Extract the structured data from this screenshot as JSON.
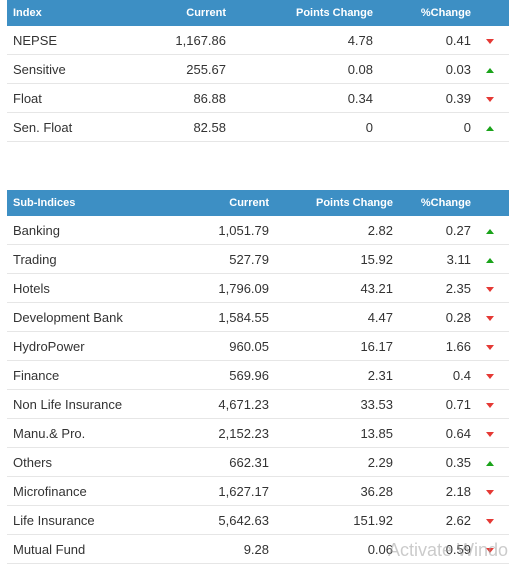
{
  "index_table": {
    "headers": [
      "Index",
      "Current",
      "Points Change",
      "%Change"
    ],
    "rows": [
      {
        "name": "NEPSE",
        "current": "1,167.86",
        "points": "4.78",
        "pct": "0.41",
        "dir": "down"
      },
      {
        "name": "Sensitive",
        "current": "255.67",
        "points": "0.08",
        "pct": "0.03",
        "dir": "up"
      },
      {
        "name": "Float",
        "current": "86.88",
        "points": "0.34",
        "pct": "0.39",
        "dir": "down"
      },
      {
        "name": "Sen. Float",
        "current": "82.58",
        "points": "0",
        "pct": "0",
        "dir": "up"
      }
    ]
  },
  "subindex_table": {
    "headers": [
      "Sub-Indices",
      "Current",
      "Points Change",
      "%Change"
    ],
    "rows": [
      {
        "name": "Banking",
        "current": "1,051.79",
        "points": "2.82",
        "pct": "0.27",
        "dir": "up"
      },
      {
        "name": "Trading",
        "current": "527.79",
        "points": "15.92",
        "pct": "3.11",
        "dir": "up"
      },
      {
        "name": "Hotels",
        "current": "1,796.09",
        "points": "43.21",
        "pct": "2.35",
        "dir": "down"
      },
      {
        "name": "Development Bank",
        "current": "1,584.55",
        "points": "4.47",
        "pct": "0.28",
        "dir": "down"
      },
      {
        "name": "HydroPower",
        "current": "960.05",
        "points": "16.17",
        "pct": "1.66",
        "dir": "down"
      },
      {
        "name": "Finance",
        "current": "569.96",
        "points": "2.31",
        "pct": "0.4",
        "dir": "down"
      },
      {
        "name": "Non Life Insurance",
        "current": "4,671.23",
        "points": "33.53",
        "pct": "0.71",
        "dir": "down"
      },
      {
        "name": "Manu.& Pro.",
        "current": "2,152.23",
        "points": "13.85",
        "pct": "0.64",
        "dir": "down"
      },
      {
        "name": "Others",
        "current": "662.31",
        "points": "2.29",
        "pct": "0.35",
        "dir": "up"
      },
      {
        "name": "Microfinance",
        "current": "1,627.17",
        "points": "36.28",
        "pct": "2.18",
        "dir": "down"
      },
      {
        "name": "Life Insurance",
        "current": "5,642.63",
        "points": "151.92",
        "pct": "2.62",
        "dir": "down"
      },
      {
        "name": "Mutual Fund",
        "current": "9.28",
        "points": "0.06",
        "pct": "0.59",
        "dir": "down"
      }
    ]
  },
  "colors": {
    "header_bg": "#3d8fc4",
    "up": "#1aa31a",
    "down": "#e53935"
  },
  "watermark": "Activate Windo"
}
